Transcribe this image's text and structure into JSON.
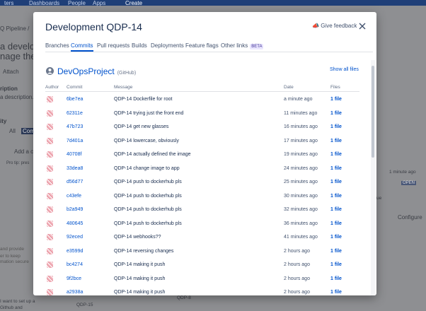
{
  "background": {
    "nav": [
      "ters",
      "Dashboards",
      "People",
      "Apps",
      "Create"
    ],
    "breadcrumb": "Q Pipeline  /",
    "issue_title": [
      "a develo",
      "nage the"
    ],
    "attach": "Attach",
    "description_label": "ription",
    "description_placeholder": "a description...",
    "activity_label": "ity",
    "filter_all": "All",
    "filter_comments": "Comm",
    "add_comment": "Add a co",
    "pro_tip": "Pro tip: pres",
    "minute_ago": "1 minute ago",
    "open": "OPEN",
    "ue": "ue",
    "configure": "Configure",
    "comment_lines": [
      "and provide",
      "er to keep",
      "mation secure"
    ],
    "card_lines": [
      "I want to set up a",
      "Github and"
    ],
    "card_keys": [
      "QDP-15",
      "QDP-8"
    ]
  },
  "dialog": {
    "title": "Development QDP-14",
    "feedback": "Give feedback",
    "tabs": [
      "Branches",
      "Commits",
      "Pull requests",
      "Builds",
      "Deployments",
      "Feature flags",
      "Other links"
    ],
    "active_tab": 1,
    "beta": "BETA",
    "repo": {
      "name": "DevOpsProject",
      "host": "(GitHub)",
      "show_all": "Show all files"
    },
    "columns": [
      "Author",
      "Commit",
      "Message",
      "Date",
      "Files"
    ],
    "rows": [
      [
        "6be7ea",
        "QDP-14 Dockerfile for root",
        "a minute ago",
        "1 file"
      ],
      [
        "62311e",
        "QDP-14 trying just the front end",
        "11 minutes ago",
        "1 file"
      ],
      [
        "47b723",
        "QDP-14 get new glasses",
        "16 minutes ago",
        "1 file"
      ],
      [
        "7d401a",
        "QDP-14 lowercase, obviously",
        "17 minutes ago",
        "1 file"
      ],
      [
        "40708f",
        "QDP-14 actually defined the image",
        "19 minutes ago",
        "1 file"
      ],
      [
        "33dea8",
        "QDP-14 change image to app",
        "24 minutes ago",
        "1 file"
      ],
      [
        "d56d77",
        "QDP-14 push to dockerhub pls",
        "25 minutes ago",
        "1 file"
      ],
      [
        "c43efe",
        "QDP-14 push to dockerhub pls",
        "30 minutes ago",
        "1 file"
      ],
      [
        "b2a949",
        "QDP-14 push to dockerhub pls",
        "32 minutes ago",
        "1 file"
      ],
      [
        "480645",
        "QDP-14 push to dockerhub pls",
        "36 minutes ago",
        "1 file"
      ],
      [
        "92eced",
        "QDP-14 webhooks??",
        "41 minutes ago",
        "1 file"
      ],
      [
        "e3599d",
        "QDP-14 reversing changes",
        "2 hours ago",
        "1 file"
      ],
      [
        "bc4274",
        "QDP-14 making it push",
        "2 hours ago",
        "1 file"
      ],
      [
        "9f2bce",
        "QDP-14 making it push",
        "2 hours ago",
        "1 file"
      ],
      [
        "a2938a",
        "QDP-14 making it push",
        "2 hours ago",
        "1 file"
      ]
    ]
  }
}
